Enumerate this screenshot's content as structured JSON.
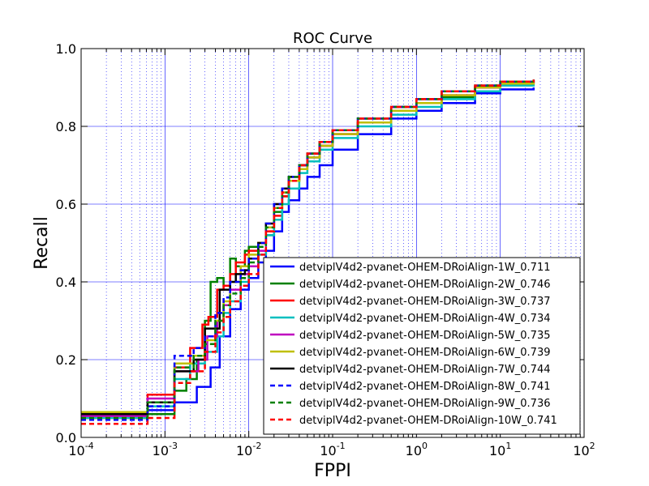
{
  "chart_data": {
    "type": "line",
    "title": "ROC Curve",
    "xlabel": "FPPI",
    "ylabel": "Recall",
    "xscale": "log",
    "xlim": [
      0.0001,
      100
    ],
    "ylim": [
      0.0,
      1.0
    ],
    "grid": true,
    "legend_position": "lower-right",
    "x_ticks": [
      {
        "value": 0.0001,
        "base": "10",
        "exp": "-4"
      },
      {
        "value": 0.001,
        "base": "10",
        "exp": "-3"
      },
      {
        "value": 0.01,
        "base": "10",
        "exp": "-2"
      },
      {
        "value": 0.1,
        "base": "10",
        "exp": "-1"
      },
      {
        "value": 1,
        "base": "10",
        "exp": "0"
      },
      {
        "value": 10,
        "base": "10",
        "exp": "1"
      },
      {
        "value": 100,
        "base": "10",
        "exp": "2"
      }
    ],
    "y_ticks": [
      {
        "value": 0.0,
        "label": "0.0"
      },
      {
        "value": 0.2,
        "label": "0.2"
      },
      {
        "value": 0.4,
        "label": "0.4"
      },
      {
        "value": 0.6,
        "label": "0.6"
      },
      {
        "value": 0.8,
        "label": "0.8"
      },
      {
        "value": 1.0,
        "label": "1.0"
      }
    ],
    "series": [
      {
        "name": "detviplV4d2-pvanet-OHEM-DRoiAlign-1W_0.711",
        "color": "#0000ff",
        "dash": "solid",
        "step": true,
        "x": [
          0.0001,
          0.00062,
          0.00062,
          0.0013,
          0.0013,
          0.0024,
          0.0035,
          0.0045,
          0.006,
          0.008,
          0.01,
          0.013,
          0.016,
          0.02,
          0.025,
          0.03,
          0.04,
          0.05,
          0.07,
          0.1,
          0.2,
          0.5,
          1,
          2,
          5,
          10,
          25
        ],
        "y": [
          0.06,
          0.06,
          0.07,
          0.07,
          0.09,
          0.13,
          0.18,
          0.26,
          0.33,
          0.38,
          0.41,
          0.45,
          0.48,
          0.53,
          0.58,
          0.61,
          0.64,
          0.67,
          0.7,
          0.74,
          0.78,
          0.82,
          0.84,
          0.86,
          0.885,
          0.895,
          0.9
        ]
      },
      {
        "name": "detviplV4d2-pvanet-OHEM-DRoiAlign-2W_0.746",
        "color": "#008000",
        "dash": "solid",
        "step": true,
        "x": [
          0.0001,
          0.00062,
          0.00062,
          0.0013,
          0.0013,
          0.0018,
          0.0024,
          0.003,
          0.0035,
          0.0042,
          0.005,
          0.006,
          0.007,
          0.009,
          0.01,
          0.013,
          0.016,
          0.02,
          0.025,
          0.03,
          0.04,
          0.05,
          0.07,
          0.1,
          0.2,
          0.5,
          1,
          2,
          5,
          10,
          25
        ],
        "y": [
          0.06,
          0.06,
          0.06,
          0.06,
          0.12,
          0.15,
          0.2,
          0.3,
          0.4,
          0.41,
          0.39,
          0.46,
          0.44,
          0.48,
          0.49,
          0.5,
          0.52,
          0.58,
          0.62,
          0.66,
          0.7,
          0.72,
          0.75,
          0.78,
          0.81,
          0.84,
          0.86,
          0.875,
          0.9,
          0.91,
          0.915
        ]
      },
      {
        "name": "detviplV4d2-pvanet-OHEM-DRoiAlign-3W_0.737",
        "color": "#ff0000",
        "dash": "solid",
        "step": true,
        "x": [
          0.0001,
          0.00062,
          0.00062,
          0.0013,
          0.0013,
          0.002,
          0.0028,
          0.0033,
          0.0042,
          0.005,
          0.006,
          0.007,
          0.009,
          0.01,
          0.013,
          0.016,
          0.02,
          0.025,
          0.03,
          0.04,
          0.05,
          0.07,
          0.1,
          0.2,
          0.5,
          1,
          2,
          5,
          10,
          25
        ],
        "y": [
          0.05,
          0.05,
          0.11,
          0.11,
          0.18,
          0.23,
          0.29,
          0.31,
          0.38,
          0.39,
          0.42,
          0.45,
          0.47,
          0.48,
          0.5,
          0.53,
          0.57,
          0.62,
          0.66,
          0.7,
          0.73,
          0.75,
          0.78,
          0.81,
          0.84,
          0.86,
          0.88,
          0.9,
          0.91,
          0.92
        ]
      },
      {
        "name": "detviplV4d2-pvanet-OHEM-DRoiAlign-4W_0.734",
        "color": "#00bfbf",
        "dash": "solid",
        "step": true,
        "x": [
          0.0001,
          0.00062,
          0.00062,
          0.0013,
          0.0013,
          0.002,
          0.003,
          0.0042,
          0.005,
          0.006,
          0.008,
          0.01,
          0.013,
          0.016,
          0.02,
          0.025,
          0.03,
          0.04,
          0.05,
          0.07,
          0.1,
          0.2,
          0.5,
          1,
          2,
          5,
          10,
          25
        ],
        "y": [
          0.05,
          0.05,
          0.08,
          0.08,
          0.15,
          0.19,
          0.22,
          0.26,
          0.32,
          0.35,
          0.4,
          0.44,
          0.47,
          0.52,
          0.56,
          0.6,
          0.64,
          0.68,
          0.71,
          0.74,
          0.77,
          0.8,
          0.83,
          0.85,
          0.87,
          0.89,
          0.905,
          0.91
        ]
      },
      {
        "name": "detviplV4d2-pvanet-OHEM-DRoiAlign-5W_0.735",
        "color": "#bf00bf",
        "dash": "solid",
        "step": true,
        "x": [
          0.0001,
          0.00062,
          0.00062,
          0.0013,
          0.0013,
          0.0025,
          0.0032,
          0.0042,
          0.005,
          0.006,
          0.008,
          0.01,
          0.013,
          0.016,
          0.02,
          0.025,
          0.03,
          0.04,
          0.05,
          0.07,
          0.1,
          0.2,
          0.5,
          1,
          2,
          5,
          10,
          25
        ],
        "y": [
          0.055,
          0.055,
          0.1,
          0.1,
          0.17,
          0.2,
          0.26,
          0.3,
          0.34,
          0.38,
          0.42,
          0.44,
          0.48,
          0.54,
          0.6,
          0.64,
          0.67,
          0.7,
          0.72,
          0.75,
          0.78,
          0.81,
          0.84,
          0.86,
          0.88,
          0.9,
          0.91,
          0.92
        ]
      },
      {
        "name": "detviplV4d2-pvanet-OHEM-DRoiAlign-6W_0.739",
        "color": "#bfbf00",
        "dash": "solid",
        "step": true,
        "x": [
          0.0001,
          0.00062,
          0.00062,
          0.0013,
          0.0013,
          0.0022,
          0.003,
          0.004,
          0.005,
          0.006,
          0.008,
          0.01,
          0.013,
          0.016,
          0.02,
          0.025,
          0.03,
          0.04,
          0.05,
          0.07,
          0.1,
          0.2,
          0.5,
          1,
          2,
          5,
          10,
          25
        ],
        "y": [
          0.065,
          0.065,
          0.09,
          0.09,
          0.19,
          0.21,
          0.25,
          0.3,
          0.35,
          0.4,
          0.44,
          0.47,
          0.5,
          0.54,
          0.59,
          0.63,
          0.66,
          0.69,
          0.72,
          0.75,
          0.78,
          0.81,
          0.84,
          0.86,
          0.88,
          0.9,
          0.91,
          0.915
        ]
      },
      {
        "name": "detviplV4d2-pvanet-OHEM-DRoiAlign-7W_0.744",
        "color": "#000000",
        "dash": "solid",
        "step": true,
        "x": [
          0.0001,
          0.00062,
          0.00062,
          0.0013,
          0.0013,
          0.0022,
          0.003,
          0.0045,
          0.006,
          0.007,
          0.009,
          0.01,
          0.013,
          0.016,
          0.02,
          0.025,
          0.03,
          0.04,
          0.05,
          0.07,
          0.1,
          0.2,
          0.5,
          1,
          2,
          5,
          10,
          25
        ],
        "y": [
          0.06,
          0.06,
          0.09,
          0.09,
          0.17,
          0.2,
          0.28,
          0.38,
          0.4,
          0.42,
          0.43,
          0.46,
          0.5,
          0.55,
          0.6,
          0.64,
          0.67,
          0.7,
          0.73,
          0.76,
          0.79,
          0.82,
          0.85,
          0.87,
          0.89,
          0.905,
          0.915,
          0.92
        ]
      },
      {
        "name": "detviplV4d2-pvanet-OHEM-DRoiAlign-8W_0.741",
        "color": "#0000ff",
        "dash": "dashed",
        "step": true,
        "x": [
          0.0001,
          0.00062,
          0.00062,
          0.0013,
          0.0013,
          0.0022,
          0.003,
          0.004,
          0.005,
          0.006,
          0.008,
          0.01,
          0.013,
          0.016,
          0.02,
          0.025,
          0.03,
          0.04,
          0.05,
          0.07,
          0.1,
          0.2,
          0.5,
          1,
          2,
          5,
          10,
          25
        ],
        "y": [
          0.045,
          0.045,
          0.08,
          0.08,
          0.21,
          0.23,
          0.26,
          0.32,
          0.36,
          0.4,
          0.43,
          0.46,
          0.5,
          0.55,
          0.6,
          0.64,
          0.67,
          0.7,
          0.73,
          0.76,
          0.79,
          0.82,
          0.85,
          0.87,
          0.89,
          0.905,
          0.915,
          0.92
        ]
      },
      {
        "name": "detviplV4d2-pvanet-OHEM-DRoiAlign-9W_0.736",
        "color": "#008000",
        "dash": "dashed",
        "step": true,
        "x": [
          0.0001,
          0.00062,
          0.00062,
          0.0013,
          0.0013,
          0.0022,
          0.003,
          0.004,
          0.005,
          0.006,
          0.008,
          0.01,
          0.013,
          0.016,
          0.02,
          0.025,
          0.03,
          0.04,
          0.05,
          0.07,
          0.1,
          0.2,
          0.5,
          1,
          2,
          5,
          10,
          25
        ],
        "y": [
          0.05,
          0.05,
          0.09,
          0.09,
          0.18,
          0.21,
          0.24,
          0.3,
          0.34,
          0.37,
          0.41,
          0.45,
          0.49,
          0.54,
          0.59,
          0.63,
          0.67,
          0.7,
          0.73,
          0.76,
          0.79,
          0.82,
          0.85,
          0.87,
          0.89,
          0.905,
          0.915,
          0.92
        ]
      },
      {
        "name": "detviplV4d2-pvanet-OHEM-DRoiAlign-10W_0.741",
        "color": "#ff0000",
        "dash": "dashed",
        "step": true,
        "x": [
          0.0001,
          0.00062,
          0.00062,
          0.0013,
          0.0013,
          0.002,
          0.003,
          0.004,
          0.005,
          0.006,
          0.008,
          0.01,
          0.013,
          0.016,
          0.02,
          0.025,
          0.03,
          0.04,
          0.05,
          0.07,
          0.1,
          0.2,
          0.5,
          1,
          2,
          5,
          10,
          25
        ],
        "y": [
          0.035,
          0.035,
          0.05,
          0.05,
          0.14,
          0.17,
          0.22,
          0.27,
          0.31,
          0.35,
          0.39,
          0.42,
          0.47,
          0.53,
          0.59,
          0.63,
          0.66,
          0.7,
          0.73,
          0.76,
          0.79,
          0.82,
          0.85,
          0.87,
          0.89,
          0.905,
          0.915,
          0.92
        ]
      }
    ]
  }
}
